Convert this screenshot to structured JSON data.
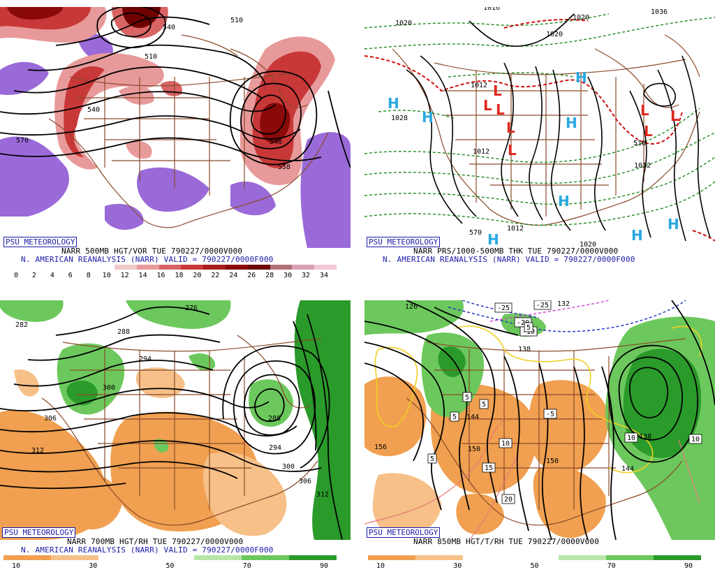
{
  "badge": "PSU METEOROLOGY",
  "colors": {
    "vort": [
      "#ffffff",
      "#ffffff",
      "#ffffff",
      "#ffffff",
      "#ffffff",
      "#f0c8c8",
      "#e89a9a",
      "#d86464",
      "#c83838",
      "#a81c1c",
      "#8a0a0a",
      "#6e0000",
      "#b0707a",
      "#d8a0b0",
      "#f4c8d8"
    ],
    "vort_neg": "#9a6ad8",
    "rh": [
      "#f0a050",
      "#f6c088",
      "#ffffff",
      "#ffffff",
      "#b8e6a8",
      "#6cc85c",
      "#2a9a2a"
    ],
    "land": "#8b4a2a",
    "contour": "#000000",
    "thick_dashed": "#1e8c1e",
    "thick_warm": "#d01010",
    "high": "#29a9e0",
    "low": "#e0281e",
    "badge": "#1a1aa8"
  },
  "panels": {
    "tl": {
      "line1": "NARR 500MB HGT/VOR TUE 790227/0000V000",
      "line2": "N. AMERICAN REANALYSIS (NARR) VALID = 790227/0000F000",
      "scale_ticks": [
        "0",
        "2",
        "4",
        "6",
        "8",
        "10",
        "12",
        "14",
        "16",
        "18",
        "20",
        "22",
        "24",
        "26",
        "28",
        "30",
        "32",
        "34"
      ],
      "contour_labels": [
        "510",
        "540",
        "546",
        "570",
        "558",
        "510",
        "540"
      ]
    },
    "tr": {
      "line1": "NARR PRS/1000-500MB THK TUE 790227/0000V000",
      "line2": "N. AMERICAN REANALYSIS (NARR) VALID = 790227/0000F000",
      "contour_labels": [
        "1020",
        "1028",
        "1012",
        "1012",
        "1020",
        "1016",
        "1020",
        "1036",
        "510",
        "1012",
        "570",
        "1012",
        "1020"
      ],
      "highs": [
        "H",
        "H",
        "H",
        "H",
        "H",
        "H",
        "H",
        "H"
      ],
      "lows": [
        "L",
        "L",
        "L",
        "L",
        "L",
        "L",
        "L",
        "L"
      ]
    },
    "bl": {
      "line1": "NARR 700MB HGT/RH TUE 790227/0000V000",
      "line2": "N. AMERICAN REANALYSIS (NARR) VALID = 790227/0000F000",
      "scale_ticks": [
        "10",
        "30",
        "50",
        "70",
        "90"
      ],
      "contour_labels": [
        "276",
        "282",
        "288",
        "294",
        "300",
        "306",
        "312",
        "288",
        "294",
        "300",
        "306",
        "312"
      ]
    },
    "br": {
      "line1": "NARR 850MB HGT/T/RH TUE 790227/0000V000",
      "scale_ticks": [
        "10",
        "30",
        "50",
        "70",
        "90"
      ],
      "contour_labels": [
        "126",
        "132",
        "138",
        "144",
        "150",
        "156",
        "138",
        "144",
        "150"
      ],
      "boxed_labels": [
        "-25",
        "-25",
        "-20",
        "-10",
        "5",
        "5",
        "5",
        "5",
        "-5",
        "10",
        "15",
        "20",
        "10",
        "10",
        "5"
      ]
    }
  }
}
